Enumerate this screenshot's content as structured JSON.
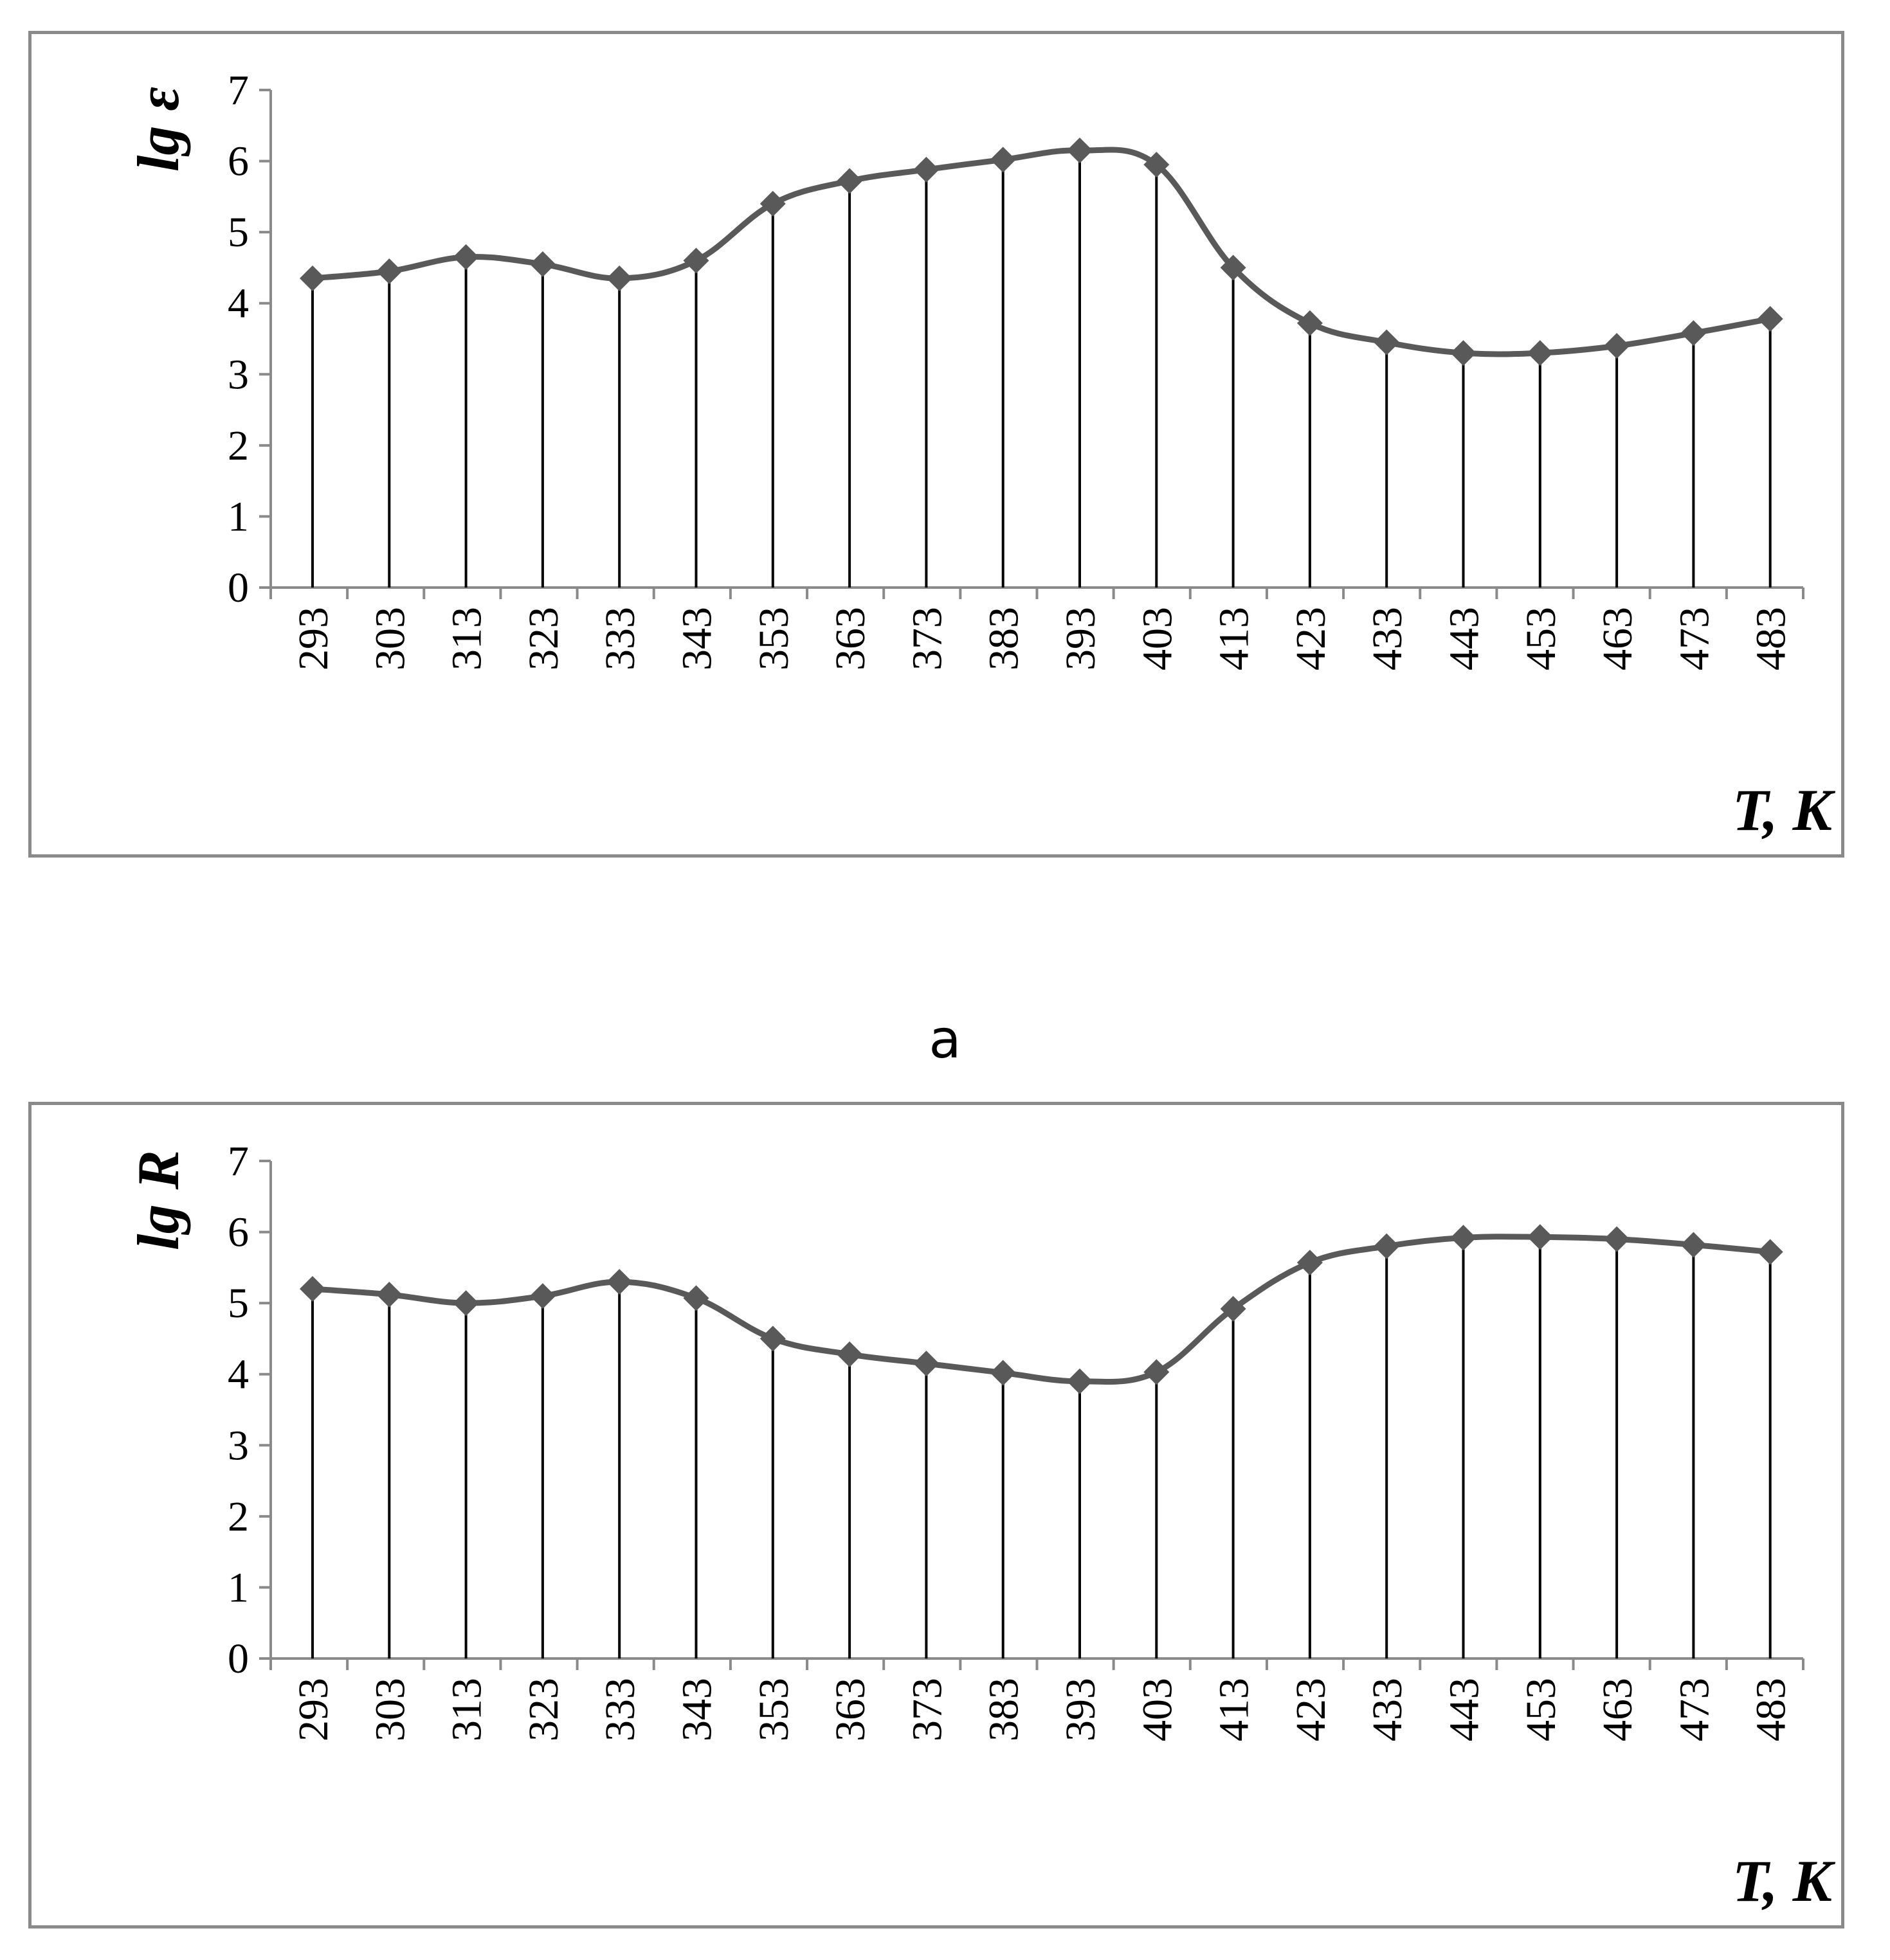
{
  "caption_a": "a",
  "chart_data": [
    {
      "type": "line",
      "title": "",
      "ylabel": "lg ε",
      "xlabel": "T, K",
      "ylim": [
        0,
        7
      ],
      "yticks": [
        0,
        1,
        2,
        3,
        4,
        5,
        6,
        7
      ],
      "categories": [
        "293",
        "303",
        "313",
        "323",
        "333",
        "343",
        "353",
        "363",
        "373",
        "383",
        "393",
        "403",
        "413",
        "423",
        "433",
        "443",
        "453",
        "463",
        "473",
        "483"
      ],
      "series": [
        {
          "values": [
            4.35,
            4.45,
            4.65,
            4.55,
            4.35,
            4.6,
            5.4,
            5.72,
            5.88,
            6.02,
            6.15,
            5.95,
            4.5,
            3.72,
            3.45,
            3.3,
            3.3,
            3.4,
            3.58,
            3.78
          ]
        }
      ],
      "drop_lines": true,
      "marker": "diamond",
      "line_color": "#595959",
      "grid": false,
      "legend": "none"
    },
    {
      "type": "line",
      "title": "",
      "ylabel": "lg R",
      "xlabel": "T, K",
      "ylim": [
        0,
        7
      ],
      "yticks": [
        0,
        1,
        2,
        3,
        4,
        5,
        6,
        7
      ],
      "categories": [
        "293",
        "303",
        "313",
        "323",
        "333",
        "343",
        "353",
        "363",
        "373",
        "383",
        "393",
        "403",
        "413",
        "423",
        "433",
        "443",
        "453",
        "463",
        "473",
        "483"
      ],
      "series": [
        {
          "values": [
            5.2,
            5.12,
            5.0,
            5.1,
            5.3,
            5.07,
            4.5,
            4.28,
            4.15,
            4.02,
            3.9,
            4.03,
            4.92,
            5.57,
            5.8,
            5.92,
            5.93,
            5.9,
            5.82,
            5.72
          ]
        }
      ],
      "drop_lines": true,
      "marker": "diamond",
      "line_color": "#595959",
      "grid": false,
      "legend": "none"
    }
  ]
}
